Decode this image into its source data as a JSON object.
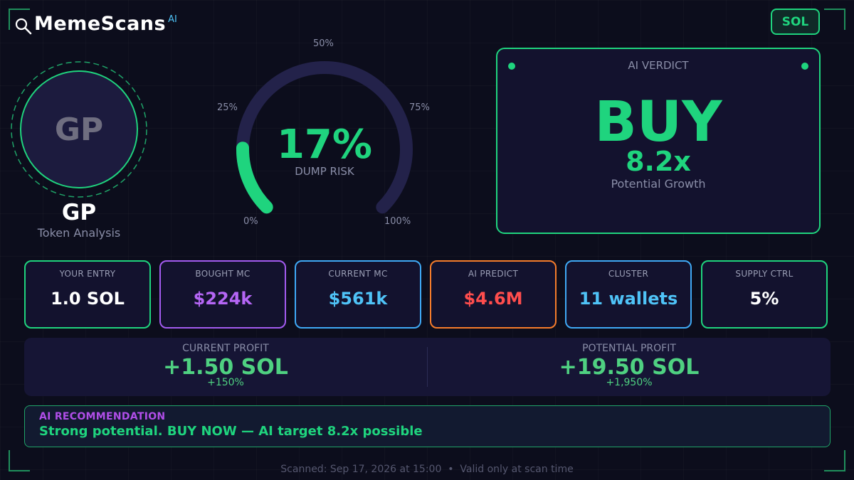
{
  "brand": {
    "name": "MemeScans",
    "superscript": "AI",
    "search_icon": "magnifier-icon"
  },
  "chain_badge": "SOL",
  "token": {
    "avatar_text": "GP",
    "symbol": "GP",
    "subtitle": "Token Analysis"
  },
  "gauge": {
    "value_text": "17%",
    "value": 17,
    "caption": "DUMP RISK",
    "tick_labels": {
      "p0": "0%",
      "p25": "25%",
      "p50": "50%",
      "p75": "75%",
      "p100": "100%"
    }
  },
  "verdict": {
    "title": "AI VERDICT",
    "action": "BUY",
    "multiplier": "8.2x",
    "subtitle": "Potential Growth"
  },
  "stats": [
    {
      "label": "YOUR ENTRY",
      "value": "1.0 SOL",
      "accent": "#1fd47e",
      "value_color": "#ffffff"
    },
    {
      "label": "BOUGHT MC",
      "value": "$224k",
      "accent": "#a35bf0",
      "value_color": "#b566f5"
    },
    {
      "label": "CURRENT MC",
      "value": "$561k",
      "accent": "#3fa9f5",
      "value_color": "#4fc3f7"
    },
    {
      "label": "AI PREDICT",
      "value": "$4.6M",
      "accent": "#f57c2b",
      "value_color": "#ff4d4d"
    },
    {
      "label": "CLUSTER",
      "value": "11 wallets",
      "accent": "#3fa9f5",
      "value_color": "#4fc3f7"
    },
    {
      "label": "SUPPLY CTRL",
      "value": "5%",
      "accent": "#1fd47e",
      "value_color": "#ffffff"
    }
  ],
  "profit": {
    "current": {
      "label": "CURRENT PROFIT",
      "value": "+1.50 SOL",
      "percent": "+150%"
    },
    "potential": {
      "label": "POTENTIAL PROFIT",
      "value": "+19.50 SOL",
      "percent": "+1,950%"
    }
  },
  "recommendation": {
    "title": "AI RECOMMENDATION",
    "text": "Strong potential. BUY NOW — AI target 8.2x possible"
  },
  "footer": "Scanned: Sep 17, 2026 at 15:00  •  Valid only at scan time",
  "colors": {
    "accent_green": "#1fd47e",
    "background": "#0c0d1c",
    "panel": "#13122e",
    "purple": "#b04ee8"
  }
}
